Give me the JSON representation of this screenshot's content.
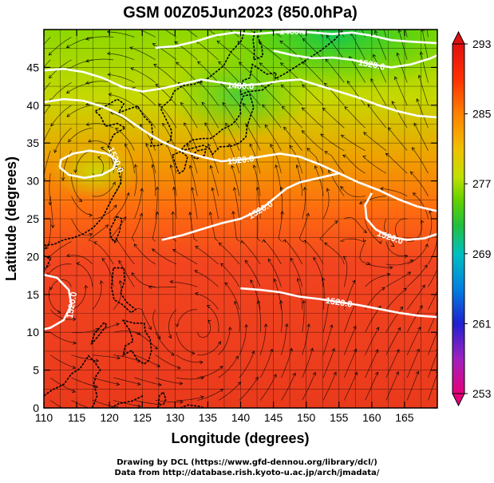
{
  "title": "GSM 00Z05Jun2023 (850.0hPa)",
  "x_axis": {
    "label": "Longitude (degrees)",
    "min": 110,
    "max": 170,
    "ticks": [
      "110",
      "115",
      "120",
      "125",
      "130",
      "135",
      "140",
      "145",
      "150",
      "155",
      "160",
      "165"
    ],
    "tick_values": [
      110,
      115,
      120,
      125,
      130,
      135,
      140,
      145,
      150,
      155,
      160,
      165
    ]
  },
  "y_axis": {
    "label": "Latitude  (degrees)",
    "min": 0,
    "max": 50,
    "ticks": [
      "0",
      "5",
      "10",
      "15",
      "20",
      "25",
      "30",
      "35",
      "40",
      "45"
    ],
    "tick_values": [
      0,
      5,
      10,
      15,
      20,
      25,
      30,
      35,
      40,
      45
    ]
  },
  "colorbar": {
    "min": 253,
    "max": 293,
    "labels": [
      "293",
      "285",
      "277",
      "269",
      "261",
      "253"
    ],
    "label_values": [
      293,
      285,
      277,
      269,
      261,
      253
    ],
    "colors": [
      "#e6007a",
      "#a020c0",
      "#2020d0",
      "#0080e0",
      "#00c0c0",
      "#20c040",
      "#60d000",
      "#c0e000",
      "#f0c000",
      "#ff8000",
      "#ff3000",
      "#e01010"
    ]
  },
  "contours": [
    {
      "label": "1520.0",
      "points": [
        [
          110,
          40.4
        ],
        [
          113,
          40.8
        ],
        [
          116,
          40.6
        ],
        [
          119,
          39.8
        ],
        [
          122,
          38.6
        ],
        [
          124,
          37.4
        ],
        [
          126,
          36.2
        ],
        [
          128,
          35.2
        ],
        [
          131,
          34.0
        ],
        [
          134,
          33.2
        ],
        [
          137,
          32.6
        ],
        [
          140,
          32.8
        ],
        [
          143,
          33.2
        ],
        [
          146,
          33.6
        ],
        [
          149,
          33.2
        ],
        [
          152,
          32.2
        ],
        [
          155,
          31.0
        ],
        [
          158,
          29.8
        ],
        [
          161,
          28.8
        ],
        [
          164,
          27.6
        ],
        [
          167,
          26.6
        ],
        [
          170,
          26.0
        ]
      ]
    },
    {
      "label": "1520.0",
      "points": [
        [
          128,
          22.2
        ],
        [
          131,
          22.8
        ],
        [
          134,
          23.6
        ],
        [
          137,
          24.4
        ],
        [
          140,
          25.0
        ],
        [
          143,
          26.2
        ],
        [
          145,
          27.6
        ],
        [
          147,
          29.0
        ],
        [
          149,
          29.8
        ],
        [
          152,
          30.4
        ],
        [
          155,
          31.0
        ]
      ]
    },
    {
      "label": "1520.0",
      "points": [
        [
          140,
          15.8
        ],
        [
          143,
          15.6
        ],
        [
          146,
          15.3
        ],
        [
          149,
          14.7
        ],
        [
          152,
          14.4
        ],
        [
          155,
          14.0
        ],
        [
          158,
          13.6
        ],
        [
          161,
          13.1
        ],
        [
          164,
          12.6
        ],
        [
          167,
          12.2
        ],
        [
          170,
          12.0
        ]
      ]
    },
    {
      "label": "1520.0",
      "points": [
        [
          160,
          28.4
        ],
        [
          159,
          26.8
        ],
        [
          159.2,
          25.0
        ],
        [
          160.6,
          23.6
        ],
        [
          162.8,
          22.6
        ],
        [
          165.4,
          22.2
        ],
        [
          168,
          22.4
        ],
        [
          170,
          23.0
        ]
      ]
    },
    {
      "label": "1520.0",
      "points": [
        [
          145,
          47.2
        ],
        [
          148,
          46.6
        ],
        [
          151,
          46.2
        ],
        [
          154,
          46.3
        ],
        [
          157,
          46.0
        ],
        [
          160,
          45.4
        ],
        [
          163,
          45.0
        ],
        [
          166,
          45.4
        ],
        [
          169,
          46.2
        ],
        [
          170,
          46.6
        ]
      ]
    },
    {
      "label": "1520.0",
      "points": [
        [
          112.4,
          31.8
        ],
        [
          113.8,
          30.8
        ],
        [
          116.2,
          30.4
        ],
        [
          118.8,
          30.8
        ],
        [
          120.6,
          31.6
        ],
        [
          121,
          32.8
        ],
        [
          119.6,
          33.6
        ],
        [
          117,
          34.0
        ],
        [
          114.4,
          33.6
        ],
        [
          112.6,
          32.8
        ],
        [
          112.4,
          31.8
        ]
      ]
    },
    {
      "label": "1520.0",
      "points": [
        [
          110,
          17.6
        ],
        [
          112,
          17.2
        ],
        [
          113.8,
          15.6
        ],
        [
          114.2,
          13.6
        ],
        [
          113,
          11.6
        ],
        [
          111,
          10.6
        ],
        [
          110,
          10.4
        ]
      ]
    },
    {
      "label": "1480.0",
      "points": [
        [
          110,
          44.6
        ],
        [
          113,
          44.8
        ],
        [
          116,
          44.4
        ],
        [
          119,
          43.6
        ],
        [
          122,
          42.4
        ],
        [
          125,
          41.8
        ],
        [
          128,
          42.2
        ],
        [
          131,
          42.8
        ],
        [
          134,
          43.4
        ],
        [
          137,
          43.0
        ],
        [
          140,
          42.6
        ],
        [
          143,
          42.8
        ],
        [
          146,
          43.2
        ],
        [
          149,
          43.4
        ],
        [
          152,
          42.6
        ],
        [
          155,
          41.8
        ],
        [
          158,
          41.0
        ],
        [
          161,
          40.0
        ],
        [
          164,
          39.2
        ],
        [
          167,
          38.6
        ],
        [
          170,
          38.4
        ]
      ]
    },
    {
      "label": "1480.0",
      "points": [
        [
          127,
          47.6
        ],
        [
          130,
          47.8
        ],
        [
          133,
          48.4
        ],
        [
          136,
          49.2
        ],
        [
          139,
          49.6
        ],
        [
          142,
          49.4
        ],
        [
          145,
          49.6
        ],
        [
          148,
          49.8
        ],
        [
          151,
          49.6
        ],
        [
          154,
          49.4
        ],
        [
          157,
          49.6
        ],
        [
          160,
          49.2
        ],
        [
          163,
          48.6
        ],
        [
          166,
          48.4
        ],
        [
          170,
          48.2
        ]
      ]
    }
  ],
  "cyclones": [
    {
      "lon": 134.2,
      "lat": 10.2
    },
    {
      "lon": 112.6,
      "lat": 15.2
    },
    {
      "lon": 166.0,
      "lat": 23.5
    },
    {
      "lon": 117.8,
      "lat": 31.7
    }
  ],
  "credits": {
    "line1": "Drawing by DCL (https://www.gfd-dennou.org/library/dcl/)",
    "line2": "Data from http://database.rish.kyoto-u.ac.jp/arch/jmadata/"
  }
}
